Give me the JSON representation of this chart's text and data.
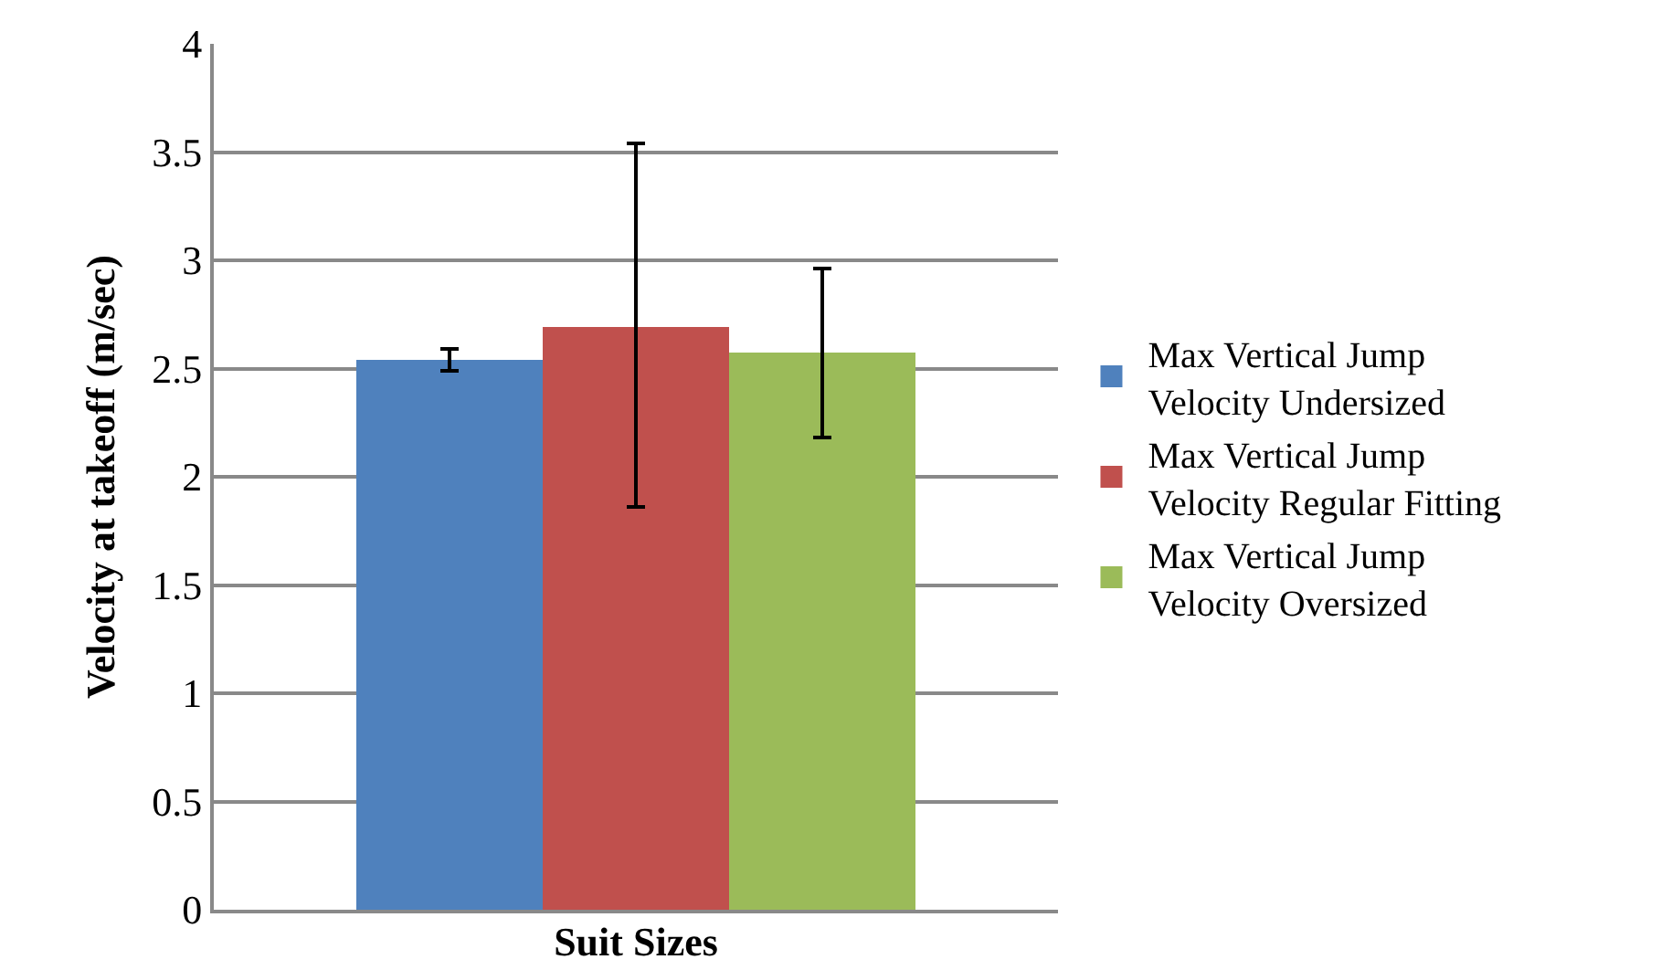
{
  "chart_data": {
    "type": "bar",
    "xlabel": "Suit Sizes",
    "ylabel": "Velocity at takeoff (m/sec)",
    "categories": [
      null,
      null,
      null
    ],
    "series": [
      {
        "name": "Max Vertical Jump Velocity Undersized",
        "color": "#4f81bd",
        "values": [
          2.54,
          null,
          null
        ],
        "errors": [
          [
            2.49,
            2.59
          ],
          null,
          null
        ]
      },
      {
        "name": "Max Vertical Jump Velocity Regular Fitting",
        "color": "#c0504d",
        "values": [
          null,
          2.69,
          null
        ],
        "errors": [
          null,
          [
            1.86,
            3.54
          ],
          null
        ]
      },
      {
        "name": "Max Vertical Jump Velocity Oversized",
        "color": "#9bbb59",
        "values": [
          null,
          null,
          2.57
        ],
        "errors": [
          null,
          null,
          [
            2.18,
            2.96
          ]
        ]
      }
    ],
    "ylim": [
      0,
      4
    ],
    "yticks": [
      0,
      0.5,
      1,
      1.5,
      2,
      2.5,
      3,
      3.5,
      4
    ],
    "grid": "y",
    "legend": "right"
  }
}
